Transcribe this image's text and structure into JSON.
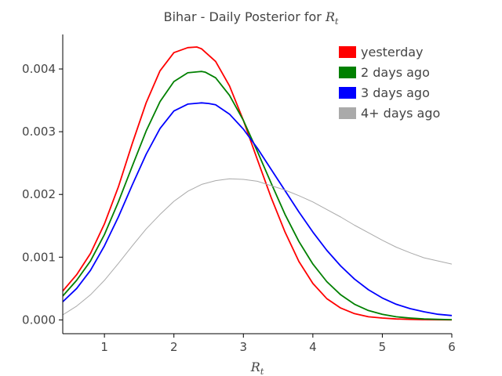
{
  "chart_data": {
    "type": "line",
    "title": {
      "prefix": "Bihar - Daily Posterior for ",
      "symbol": "R",
      "subscript": "t"
    },
    "xlabel": {
      "symbol": "R",
      "subscript": "t"
    },
    "ylabel": "",
    "xlim": [
      0.4,
      6.0
    ],
    "ylim": [
      -0.00022,
      0.00455
    ],
    "xticks": [
      1,
      2,
      3,
      4,
      5,
      6
    ],
    "xtick_labels": [
      "1",
      "2",
      "3",
      "4",
      "5",
      "6"
    ],
    "yticks": [
      0.0,
      0.001,
      0.002,
      0.003,
      0.004
    ],
    "ytick_labels": [
      "0.000",
      "0.001",
      "0.002",
      "0.003",
      "0.004"
    ],
    "grid": false,
    "legend_position": "top-right",
    "series": [
      {
        "name": "yesterday",
        "color": "#ff0000",
        "line_width": 1.8,
        "x": [
          0.4,
          0.6,
          0.8,
          1.0,
          1.2,
          1.4,
          1.6,
          1.8,
          2.0,
          2.2,
          2.33,
          2.4,
          2.6,
          2.8,
          3.0,
          3.2,
          3.4,
          3.6,
          3.8,
          4.0,
          4.2,
          4.4,
          4.6,
          4.8,
          5.0,
          5.2,
          5.4,
          5.6,
          5.8,
          6.0
        ],
        "values": [
          0.00046,
          0.00072,
          0.00106,
          0.00153,
          0.00212,
          0.00281,
          0.00346,
          0.00397,
          0.00426,
          0.00434,
          0.00435,
          0.00432,
          0.00412,
          0.00373,
          0.00318,
          0.00256,
          0.00195,
          0.0014,
          0.00093,
          0.00058,
          0.00034,
          0.00019,
          0.0001,
          5e-05,
          3e-05,
          1.5e-05,
          8e-06,
          4e-06,
          2e-06,
          1e-06
        ]
      },
      {
        "name": "2 days ago",
        "color": "#008000",
        "line_width": 1.8,
        "x": [
          0.4,
          0.6,
          0.8,
          1.0,
          1.2,
          1.4,
          1.6,
          1.8,
          2.0,
          2.2,
          2.4,
          2.45,
          2.6,
          2.8,
          3.0,
          3.2,
          3.4,
          3.6,
          3.8,
          4.0,
          4.2,
          4.4,
          4.6,
          4.8,
          5.0,
          5.2,
          5.4,
          5.6,
          5.8,
          6.0
        ],
        "values": [
          0.00038,
          0.00063,
          0.00094,
          0.00136,
          0.00188,
          0.00245,
          0.00301,
          0.00348,
          0.0038,
          0.00394,
          0.00396,
          0.00395,
          0.00386,
          0.00358,
          0.00318,
          0.00269,
          0.00218,
          0.00168,
          0.00125,
          0.00089,
          0.00061,
          0.0004,
          0.00025,
          0.00015,
          9e-05,
          5e-05,
          3e-05,
          1.5e-05,
          8e-06,
          4e-06
        ]
      },
      {
        "name": "3 days ago",
        "color": "#0000ff",
        "line_width": 1.8,
        "x": [
          0.4,
          0.6,
          0.8,
          1.0,
          1.2,
          1.4,
          1.6,
          1.8,
          2.0,
          2.2,
          2.4,
          2.5,
          2.6,
          2.8,
          3.0,
          3.2,
          3.4,
          3.6,
          3.8,
          4.0,
          4.2,
          4.4,
          4.6,
          4.8,
          5.0,
          5.2,
          5.4,
          5.6,
          5.8,
          6.0
        ],
        "values": [
          0.00029,
          0.0005,
          0.00079,
          0.00118,
          0.00164,
          0.00215,
          0.00264,
          0.00305,
          0.00333,
          0.00344,
          0.00346,
          0.00345,
          0.00343,
          0.00328,
          0.00304,
          0.00274,
          0.0024,
          0.00206,
          0.00172,
          0.0014,
          0.00111,
          0.00086,
          0.00065,
          0.00048,
          0.00035,
          0.00025,
          0.00018,
          0.00013,
          9e-05,
          7e-05
        ]
      },
      {
        "name": "4+ days ago",
        "color": "#aaaaaa",
        "line_width": 1.0,
        "x": [
          0.4,
          0.6,
          0.8,
          1.0,
          1.2,
          1.4,
          1.6,
          1.8,
          2.0,
          2.2,
          2.4,
          2.6,
          2.8,
          3.0,
          3.2,
          3.4,
          3.6,
          3.8,
          4.0,
          4.2,
          4.4,
          4.6,
          4.8,
          5.0,
          5.2,
          5.4,
          5.6,
          5.8,
          6.0
        ],
        "values": [
          8e-05,
          0.00022,
          0.0004,
          0.00063,
          0.0009,
          0.00118,
          0.00145,
          0.00168,
          0.00189,
          0.00205,
          0.00216,
          0.00222,
          0.00225,
          0.00224,
          0.00221,
          0.00214,
          0.00207,
          0.00198,
          0.00188,
          0.00176,
          0.00164,
          0.00151,
          0.00139,
          0.00127,
          0.00116,
          0.00107,
          0.00099,
          0.00094,
          0.00089
        ]
      }
    ]
  }
}
